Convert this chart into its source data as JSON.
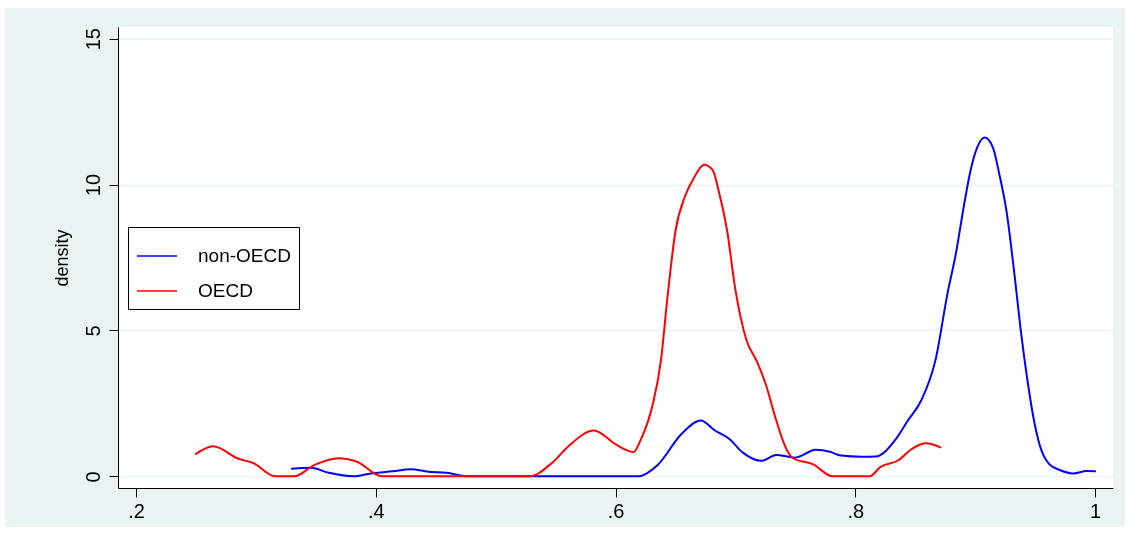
{
  "chart_data": {
    "type": "line",
    "ylabel": "density",
    "xlim": [
      0.185,
      1.015
    ],
    "ylim": [
      -0.4,
      15.4
    ],
    "xticks": [
      {
        "value": 0.2,
        "label": ".2"
      },
      {
        "value": 0.4,
        "label": ".4"
      },
      {
        "value": 0.6,
        "label": ".6"
      },
      {
        "value": 0.8,
        "label": ".8"
      },
      1
    ],
    "yticks": [
      0,
      5,
      10,
      15
    ],
    "grid": "y",
    "legend": "left",
    "marker": "none",
    "line_style": "solid",
    "series": [
      {
        "name": "non-OECD",
        "color": "#0000ff",
        "x": [
          0.33,
          0.346,
          0.361,
          0.381,
          0.396,
          0.414,
          0.429,
          0.444,
          0.459,
          0.477,
          0.619,
          0.635,
          0.655,
          0.671,
          0.683,
          0.695,
          0.706,
          0.722,
          0.734,
          0.75,
          0.767,
          0.779,
          0.788,
          0.805,
          0.817,
          0.834,
          0.844,
          0.855,
          0.867,
          0.877,
          0.884,
          0.891,
          0.896,
          0.902,
          0.908,
          0.915,
          0.92,
          0.926,
          0.933,
          0.938,
          0.944,
          0.949,
          0.954,
          0.962,
          0.971,
          0.982,
          0.993,
          1.0
        ],
        "values": [
          0.26,
          0.29,
          0.12,
          0,
          0.1,
          0.17,
          0.24,
          0.16,
          0.12,
          0,
          0,
          0.38,
          1.45,
          1.91,
          1.57,
          1.28,
          0.82,
          0.53,
          0.73,
          0.64,
          0.91,
          0.84,
          0.71,
          0.67,
          0.68,
          1.28,
          1.92,
          2.6,
          4.0,
          6.28,
          7.65,
          9.36,
          10.45,
          11.3,
          11.61,
          11.25,
          10.39,
          9.13,
          6.85,
          5.02,
          3.19,
          1.93,
          1.05,
          0.41,
          0.21,
          0.1,
          0.18,
          0.17
        ]
      },
      {
        "name": "OECD",
        "color": "#ff0000",
        "x": [
          0.25,
          0.2645,
          0.285,
          0.298,
          0.316,
          0.332,
          0.349,
          0.369,
          0.384,
          0.405,
          0.528,
          0.547,
          0.561,
          0.582,
          0.6,
          0.608,
          0.615,
          0.621,
          0.631,
          0.638,
          0.643,
          0.65,
          0.658,
          0.665,
          0.674,
          0.681,
          0.686,
          0.693,
          0.7,
          0.709,
          0.718,
          0.725,
          0.734,
          0.741,
          0.748,
          0.765,
          0.781,
          0.812,
          0.821,
          0.836,
          0.847,
          0.859,
          0.871
        ],
        "values": [
          0.77,
          1.03,
          0.61,
          0.45,
          0,
          0,
          0.39,
          0.62,
          0.51,
          0,
          0,
          0.46,
          1.04,
          1.57,
          1.1,
          0.92,
          0.83,
          1.25,
          2.45,
          4.0,
          6.0,
          8.4,
          9.6,
          10.2,
          10.68,
          10.5,
          9.8,
          8.45,
          6.4,
          4.7,
          3.93,
          3.2,
          1.93,
          1.08,
          0.62,
          0.41,
          0,
          0,
          0.32,
          0.55,
          0.93,
          1.13,
          0.99
        ]
      }
    ]
  }
}
